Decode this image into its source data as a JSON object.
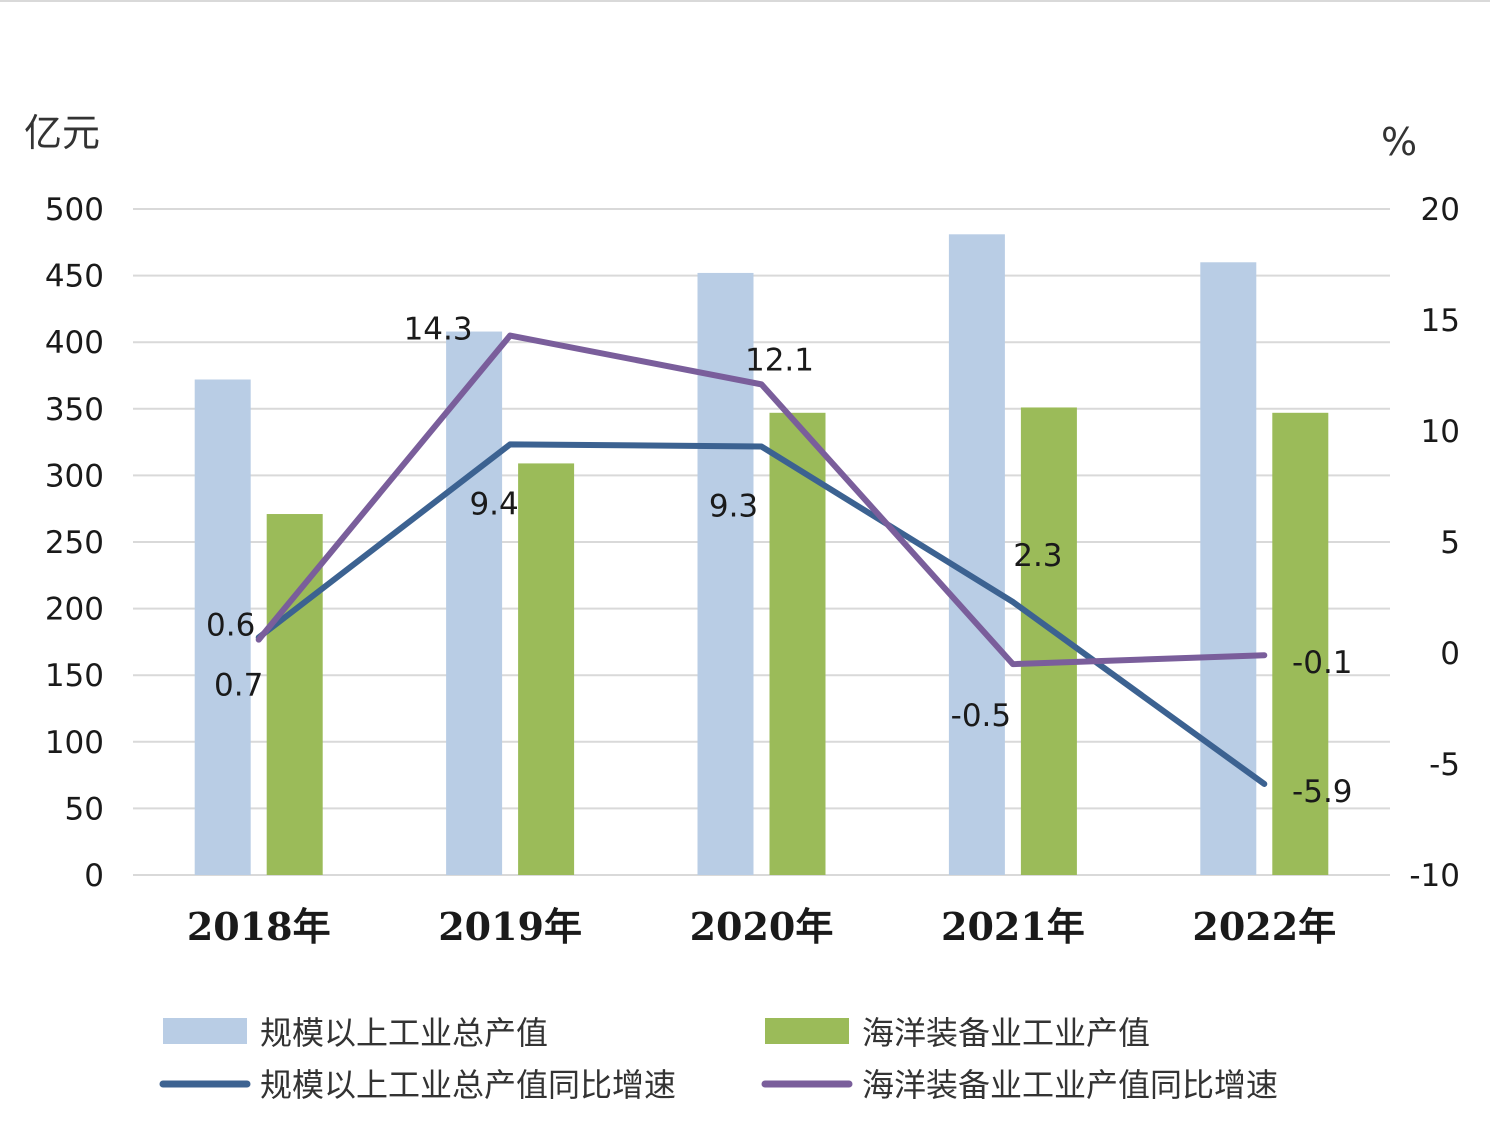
{
  "chart_data": {
    "type": "bar",
    "categories": [
      "2018年",
      "2019年",
      "2020年",
      "2021年",
      "2022年"
    ],
    "left_axis": {
      "unit": "亿元",
      "ylim": [
        0,
        500
      ],
      "ticks": [
        "0",
        "50",
        "100",
        "150",
        "200",
        "250",
        "300",
        "350",
        "400",
        "450",
        "500"
      ]
    },
    "right_axis": {
      "unit": "%",
      "ylim": [
        -10,
        20
      ],
      "ticks": [
        "-10",
        "-5",
        "0",
        "5",
        "10",
        "15",
        "20"
      ]
    },
    "grid": true,
    "legend_position": "bottom",
    "bar_series": [
      {
        "name": "规模以上工业总产值",
        "color": "#b9cde5",
        "values": [
          372,
          408,
          452,
          481,
          460
        ]
      },
      {
        "name": "海洋装备业工业产值",
        "color": "#9bbb59",
        "values": [
          271,
          309,
          347,
          351,
          347
        ]
      }
    ],
    "line_series": [
      {
        "name": "规模以上工业总产值同比增速",
        "color": "#3c6291",
        "values": [
          0.7,
          9.4,
          9.3,
          2.3,
          -5.9
        ],
        "labels": [
          "0.7",
          "9.4",
          "9.3",
          "2.3",
          "-5.9"
        ]
      },
      {
        "name": "海洋装备业工业产值同比增速",
        "color": "#7a5e9b",
        "values": [
          0.6,
          14.3,
          12.1,
          -0.5,
          -0.1
        ],
        "labels": [
          "0.6",
          "14.3",
          "12.1",
          "-0.5",
          "-0.1"
        ]
      }
    ]
  }
}
